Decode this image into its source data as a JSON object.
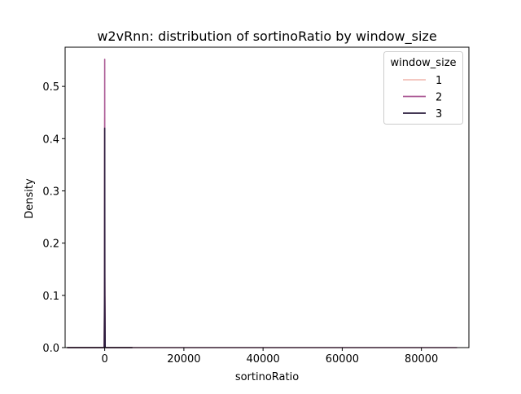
{
  "chart_data": {
    "type": "line",
    "title": "w2vRnn: distribution of sortinoRatio by window_size",
    "xlabel": "sortinoRatio",
    "ylabel": "Density",
    "xlim": [
      -10000,
      92000
    ],
    "ylim": [
      0,
      0.575
    ],
    "xticks": [
      0,
      20000,
      40000,
      60000,
      80000
    ],
    "xtick_labels": [
      "0",
      "20000",
      "40000",
      "60000",
      "80000"
    ],
    "yticks": [
      0.0,
      0.1,
      0.2,
      0.3,
      0.4,
      0.5
    ],
    "ytick_labels": [
      "0.0",
      "0.1",
      "0.2",
      "0.3",
      "0.4",
      "0.5"
    ],
    "grid": false,
    "legend": {
      "title": "window_size",
      "placement": "top-right"
    },
    "series": [
      {
        "name": "1",
        "color": "#f2c0b8",
        "x": [
          -9500,
          -400,
          -120,
          -30,
          0,
          30,
          120,
          400,
          7000
        ],
        "y": [
          0,
          0,
          0.0005,
          0.12,
          0.44,
          0.12,
          0.0005,
          0,
          0
        ]
      },
      {
        "name": "2",
        "color": "#ab5a95",
        "x": [
          -9500,
          -400,
          -120,
          -30,
          0,
          30,
          120,
          400,
          89000
        ],
        "y": [
          0,
          0,
          0.0005,
          0.14,
          0.552,
          0.14,
          0.0005,
          0,
          0
        ]
      },
      {
        "name": "3",
        "color": "#2a1b3c",
        "x": [
          -9500,
          -400,
          -120,
          -30,
          0,
          30,
          120,
          400,
          7000
        ],
        "y": [
          0,
          0,
          0.0003,
          0.1,
          0.42,
          0.1,
          0.0003,
          0,
          0
        ]
      }
    ]
  }
}
